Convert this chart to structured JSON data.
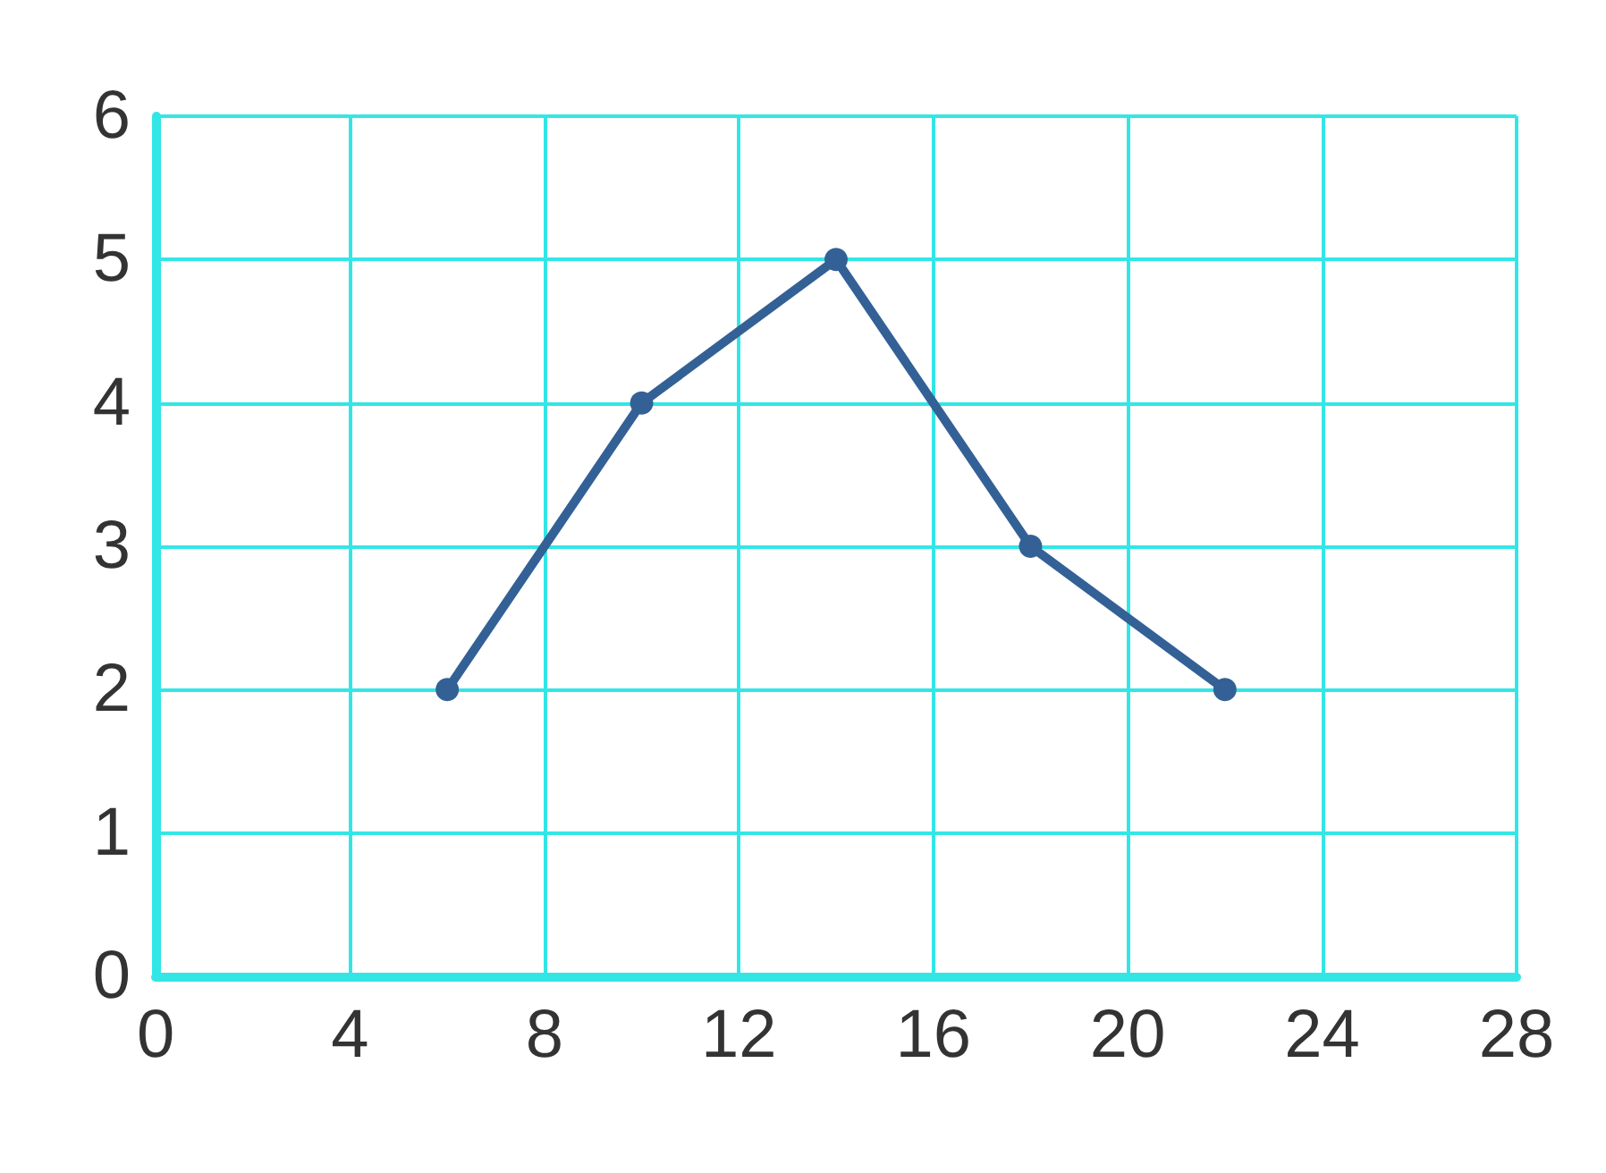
{
  "chart_data": {
    "type": "line",
    "x": [
      6,
      10,
      14,
      18,
      22
    ],
    "series": [
      {
        "color": "#336196",
        "values": [
          2,
          4,
          5,
          3,
          2
        ]
      }
    ],
    "xlim": [
      0,
      28
    ],
    "xticks": [
      0,
      4,
      8,
      12,
      16,
      20,
      24,
      28
    ],
    "ylim": [
      0,
      6
    ],
    "yticks": [
      0,
      1,
      2,
      3,
      4,
      5,
      6
    ],
    "grid": true,
    "marker": "circle",
    "line_style": "solid"
  }
}
